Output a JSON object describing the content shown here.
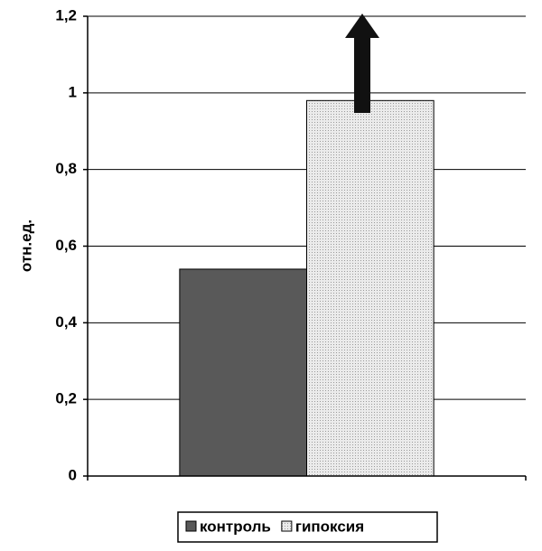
{
  "chart_data": {
    "type": "bar",
    "y_label": "отн.ед.",
    "categories": [
      null
    ],
    "series": [
      {
        "name": "контроль",
        "color": "#595959",
        "values": [
          0.54
        ]
      },
      {
        "name": "гипоксия",
        "color": "#e4e4e4",
        "values": [
          0.98
        ]
      }
    ],
    "ylim": [
      0,
      1.2
    ],
    "yticks": [
      0,
      {
        "value": 0.2,
        "label": "0,2"
      },
      {
        "value": 0.4,
        "label": "0,4"
      },
      {
        "value": 0.6,
        "label": "0,6"
      },
      {
        "value": 0.8,
        "label": "0,8"
      },
      1,
      {
        "value": 1.2,
        "label": "1,2"
      }
    ],
    "grid": true,
    "legend": "bottom"
  }
}
